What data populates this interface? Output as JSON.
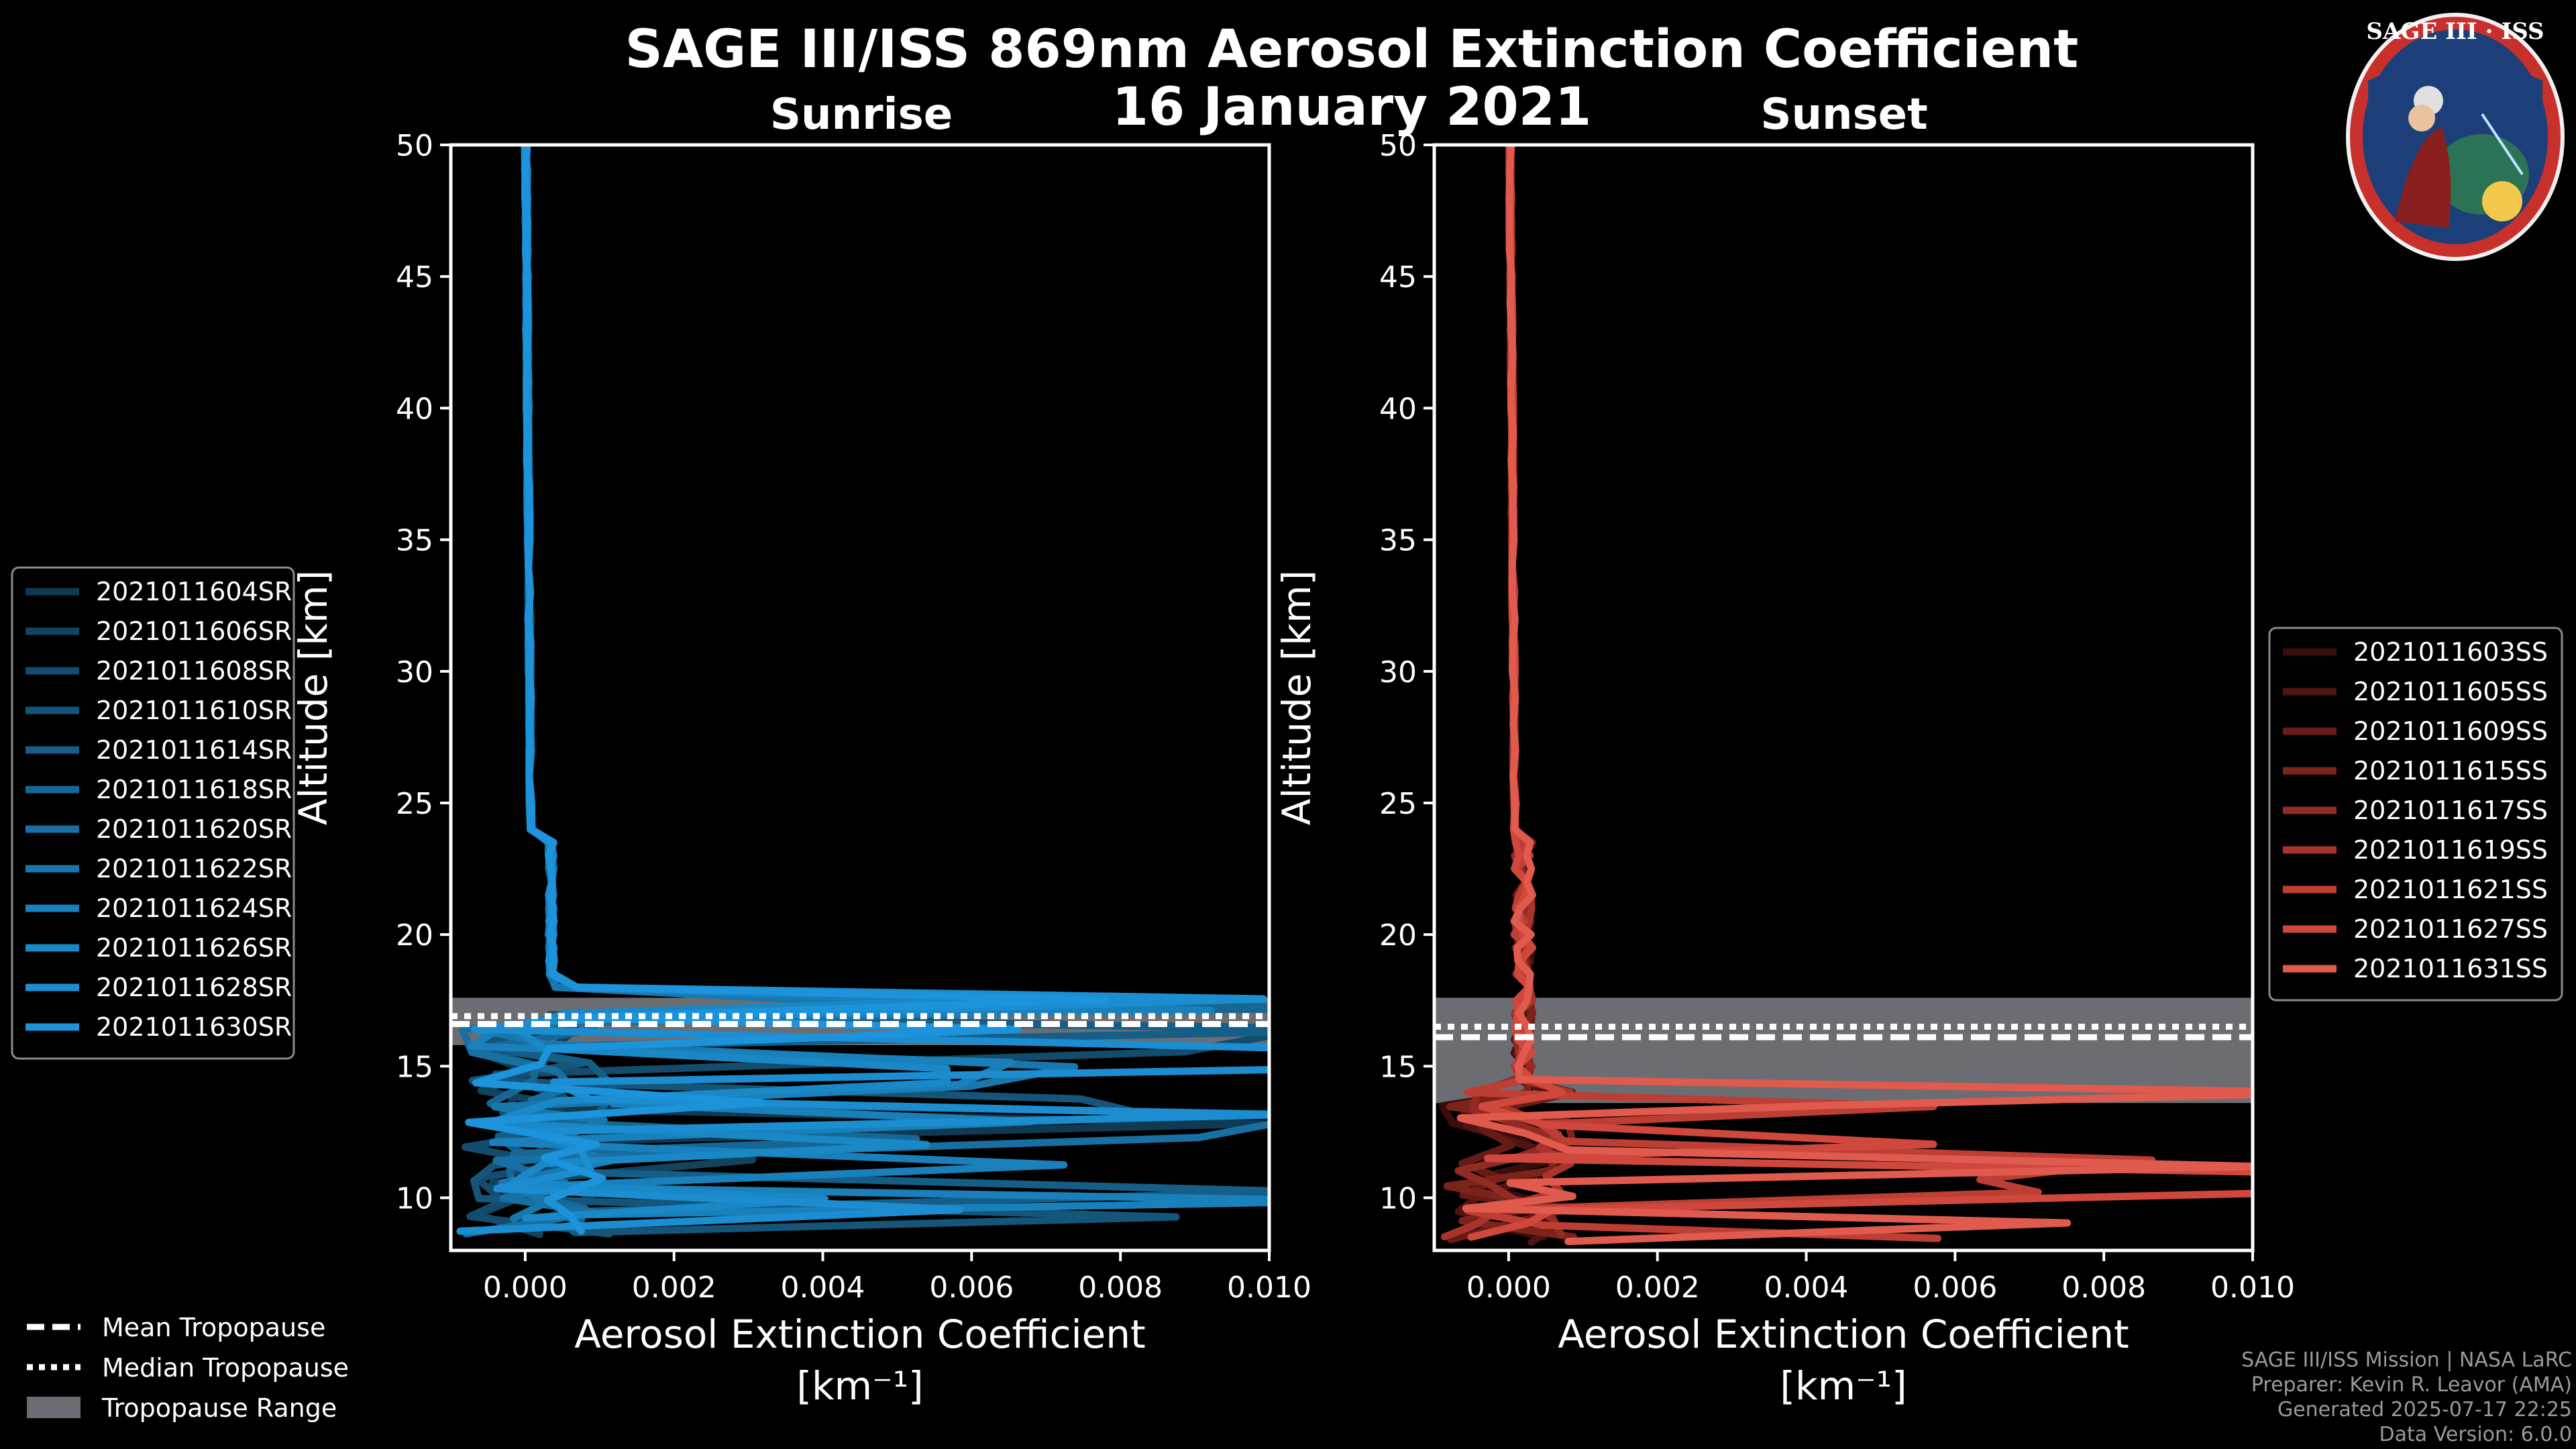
{
  "header": {
    "title": "SAGE III/ISS 869nm Aerosol Extinction Coefficient",
    "date": "16 January 2021"
  },
  "logo": {
    "text": "SAGE III · ISS"
  },
  "credits": [
    "SAGE III/ISS Mission | NASA LaRC",
    "Preparer: Kevin R. Leavor (AMA)",
    "Generated 2025-07-17 22:25",
    "Data Version: 6.0.0"
  ],
  "tropopause_legend": {
    "mean": "Mean Tropopause",
    "median": "Median Tropopause",
    "range": "Tropopause Range"
  },
  "colors": {
    "sunrise": "#1a85c2",
    "sunset": "#e05a4d",
    "tropo_range": "#6b6d72",
    "frame": "#ffffff"
  },
  "chart_data": [
    {
      "type": "line",
      "title": "Sunrise",
      "xlabel": "Aerosol Extinction Coefficient",
      "xunit": "[km⁻¹]",
      "ylabel": "Altitude [km]",
      "xlim": [
        -0.001,
        0.01
      ],
      "ylim": [
        8,
        50
      ],
      "xticks": [
        "0.000",
        "0.002",
        "0.004",
        "0.006",
        "0.008",
        "0.010"
      ],
      "xtick_values": [
        0,
        0.002,
        0.004,
        0.006,
        0.008,
        0.01
      ],
      "yticks": [
        10,
        15,
        20,
        25,
        30,
        35,
        40,
        45,
        50
      ],
      "tropopause": {
        "mean": 16.6,
        "median": 16.9,
        "range": [
          15.8,
          17.6
        ]
      },
      "series": [
        {
          "name": "2021011604SR",
          "color": "#103a52"
        },
        {
          "name": "2021011606SR",
          "color": "#12435f"
        },
        {
          "name": "2021011608SR",
          "color": "#134c6c"
        },
        {
          "name": "2021011610SR",
          "color": "#145579"
        },
        {
          "name": "2021011614SR",
          "color": "#155e87"
        },
        {
          "name": "2021011618SR",
          "color": "#166794"
        },
        {
          "name": "2021011620SR",
          "color": "#1770a1"
        },
        {
          "name": "2021011622SR",
          "color": "#1878ae"
        },
        {
          "name": "2021011624SR",
          "color": "#1980bb"
        },
        {
          "name": "2021011626SR",
          "color": "#1a87c6"
        },
        {
          "name": "2021011628SR",
          "color": "#1b8dd0"
        },
        {
          "name": "2021011630SR",
          "color": "#1c93da"
        }
      ]
    },
    {
      "type": "line",
      "title": "Sunset",
      "xlabel": "Aerosol Extinction Coefficient",
      "xunit": "[km⁻¹]",
      "ylabel": "Altitude [km]",
      "xlim": [
        -0.001,
        0.01
      ],
      "ylim": [
        8,
        50
      ],
      "xticks": [
        "0.000",
        "0.002",
        "0.004",
        "0.006",
        "0.008",
        "0.010"
      ],
      "xtick_values": [
        0,
        0.002,
        0.004,
        0.006,
        0.008,
        0.01
      ],
      "yticks": [
        10,
        15,
        20,
        25,
        30,
        35,
        40,
        45,
        50
      ],
      "tropopause": {
        "mean": 16.1,
        "median": 16.5,
        "range": [
          13.6,
          17.6
        ]
      },
      "series": [
        {
          "name": "2021011603SS",
          "color": "#3a0d0d"
        },
        {
          "name": "2021011605SS",
          "color": "#501411"
        },
        {
          "name": "2021011609SS",
          "color": "#661b16"
        },
        {
          "name": "2021011615SS",
          "color": "#7c231c"
        },
        {
          "name": "2021011617SS",
          "color": "#922b23"
        },
        {
          "name": "2021011619SS",
          "color": "#a8342b"
        },
        {
          "name": "2021011621SS",
          "color": "#bd3e34"
        },
        {
          "name": "2021011627SS",
          "color": "#d0483d"
        },
        {
          "name": "2021011631SS",
          "color": "#e05a4d"
        }
      ]
    }
  ]
}
